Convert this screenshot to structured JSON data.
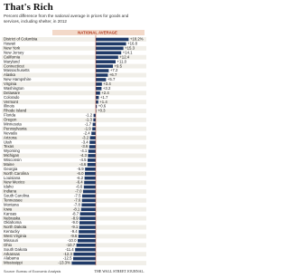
{
  "chart_data": {
    "type": "bar",
    "orientation": "horizontal",
    "title": "That's Rich",
    "subtitle": "Percent difference from the national average in prices for goods and services, including shelter, in 2012",
    "axis_label": "NATIONAL AVERAGE",
    "source": "Source: Bureau of Economic Analysis",
    "publisher": "THE WALL STREET JOURNAL.",
    "color": "#1f3a68",
    "xlim": [
      -20,
      22
    ],
    "categories": [
      "District of Columbia",
      "Hawaii",
      "New York",
      "New Jersey",
      "California",
      "Maryland",
      "Connecticut",
      "Massachusetts",
      "Alaska",
      "New Hampshire",
      "Virginia",
      "Washington",
      "Delaware",
      "Colorado",
      "Vermont",
      "Illinois",
      "Rhode Island",
      "Florida",
      "Oregon",
      "Minnesota",
      "Pennsylvania",
      "Nevada",
      "Arizona",
      "Utah",
      "Texas",
      "Wyoming",
      "Michigan",
      "Wisconsin",
      "Maine",
      "Georgia",
      "North Carolina",
      "Louisiana",
      "New Mexico",
      "Idaho",
      "Indiana",
      "South Carolina",
      "Tennessee",
      "Montana",
      "Iowa",
      "Kansas",
      "Nebraska",
      "Oklahoma",
      "North Dakota",
      "Kentucky",
      "West Virginia",
      "Missouri",
      "Ohio",
      "South Dakota",
      "Arkansas",
      "Alabama",
      "Mississippi"
    ],
    "values": [
      18.2,
      16.8,
      15.3,
      14.1,
      12.4,
      11.0,
      9.5,
      7.2,
      6.7,
      5.7,
      3.4,
      3.2,
      2.4,
      1.7,
      1.4,
      0.6,
      0.3,
      -1.2,
      -1.3,
      -1.7,
      -1.9,
      -2.4,
      -3.2,
      -3.4,
      -3.6,
      -4.1,
      -4.3,
      -4.5,
      -4.6,
      -5.9,
      -6.0,
      -6.2,
      -6.4,
      -6.6,
      -7.0,
      -7.5,
      -7.6,
      -7.8,
      -8.1,
      -8.7,
      -8.9,
      -9.0,
      -9.1,
      -9.4,
      -9.6,
      -10.0,
      -10.7,
      -11.4,
      -12.3,
      -12.5,
      -13.3
    ],
    "value_labels": [
      "+18.2%",
      "+16.8",
      "+15.3",
      "+14.1",
      "+12.4",
      "+11.0",
      "+9.5",
      "+7.2",
      "+6.7",
      "+5.7",
      "+3.4",
      "+3.2",
      "+2.4",
      "+1.7",
      "+1.4",
      "+0.6",
      "+0.3",
      "-1.2",
      "-1.3",
      "-1.7",
      "-1.9",
      "-2.4",
      "-3.2",
      "-3.4",
      "-3.6",
      "-4.1",
      "-4.3",
      "-4.5",
      "-4.6",
      "-5.9",
      "-6.0",
      "-6.2",
      "-6.4",
      "-6.6",
      "-7.0",
      "-7.5",
      "-7.6",
      "-7.8",
      "-8.1",
      "-8.7",
      "-8.9",
      "-9.0",
      "-9.1",
      "-9.4",
      "-9.6",
      "-10.0",
      "-10.7",
      "-11.4",
      "-12.3",
      "-12.5",
      "-13.3%"
    ]
  }
}
